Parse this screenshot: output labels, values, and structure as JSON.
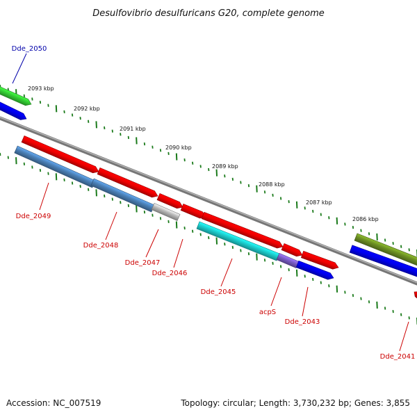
{
  "title": "Desulfovibrio desulfuricans G20, complete genome",
  "footer": {
    "accession": "Accession: NC_007519",
    "topology": "Topology: circular; Length: 3,730,232 bp; Genes: 3,855"
  },
  "colors": {
    "background": "#ffffff",
    "backbone": "#777777",
    "tick": "#1a7a1a",
    "label_red": "#cc0000",
    "label_blue": "#0000aa"
  },
  "ruler_labels": [
    "2093 kbp",
    "2092 kbp",
    "2091 kbp",
    "2090 kbp",
    "2089 kbp",
    "2088 kbp",
    "2087 kbp",
    "2086 kbp"
  ],
  "gene_labels": [
    "Dde_2050",
    "Dde_2049",
    "Dde_2048",
    "Dde_2047",
    "Dde_2046",
    "Dde_2045",
    "acpS",
    "Dde_2043",
    "Dde_2041"
  ],
  "features": [
    {
      "name": "green-feature",
      "color": "#33cc33"
    },
    {
      "name": "blue-feature-top",
      "color": "#0000ee"
    },
    {
      "name": "red-feature-a",
      "color": "#ee0000"
    },
    {
      "name": "steelblue-feature-a",
      "color": "#4a7fb5"
    },
    {
      "name": "red-feature-b",
      "color": "#ee0000"
    },
    {
      "name": "steelblue-feature-b",
      "color": "#4a7fb5"
    },
    {
      "name": "red-feature-c",
      "color": "#ee0000"
    },
    {
      "name": "gray-feature",
      "color": "#b8b8b8"
    },
    {
      "name": "red-feature-d",
      "color": "#ee0000"
    },
    {
      "name": "red-feature-e",
      "color": "#ee0000"
    },
    {
      "name": "cyan-feature",
      "color": "#1ccccc"
    },
    {
      "name": "red-feature-f",
      "color": "#ee0000"
    },
    {
      "name": "purple-feature",
      "color": "#7a5cc4"
    },
    {
      "name": "red-feature-g",
      "color": "#ee0000"
    },
    {
      "name": "blue-feature-bottom",
      "color": "#0000ee"
    },
    {
      "name": "olive-feature",
      "color": "#6b8e23"
    },
    {
      "name": "blue-feature-right",
      "color": "#0000ee"
    },
    {
      "name": "red-feature-edge",
      "color": "#ee0000"
    }
  ]
}
